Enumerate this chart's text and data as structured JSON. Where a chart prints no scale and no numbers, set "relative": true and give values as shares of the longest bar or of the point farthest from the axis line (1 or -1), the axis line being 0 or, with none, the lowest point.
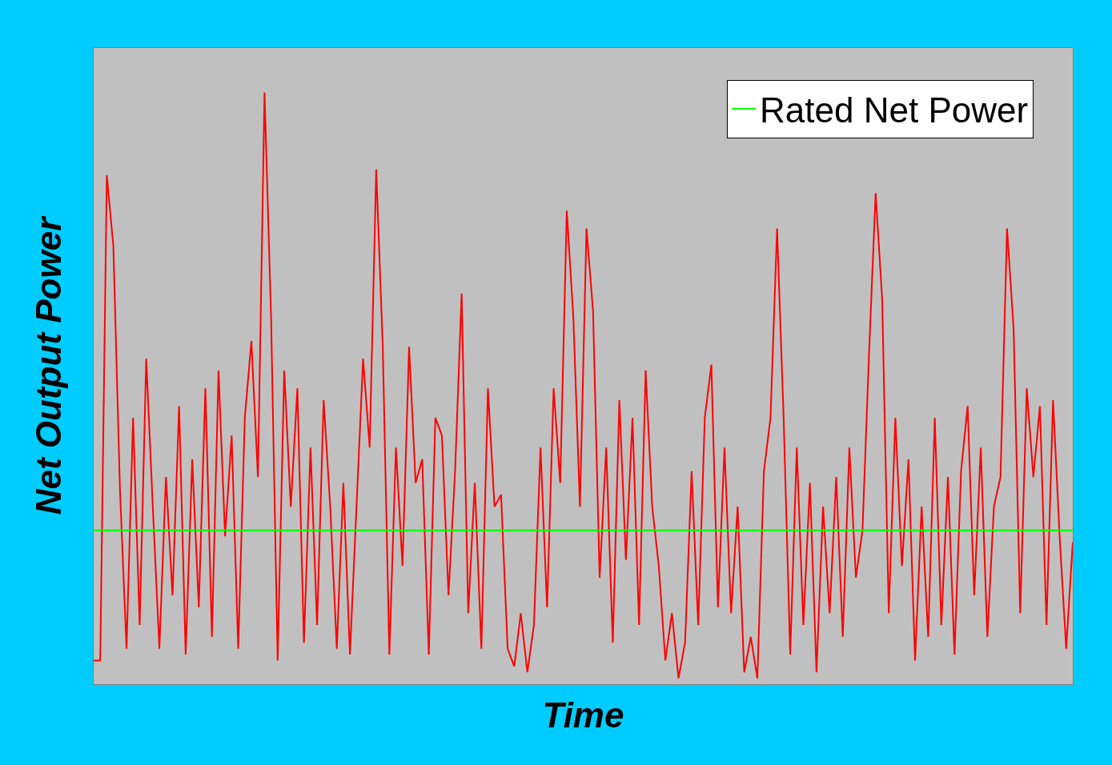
{
  "chart_data": {
    "type": "line",
    "relative": true,
    "xlabel": "Time",
    "ylabel": "Net Output Power",
    "legend": "top right",
    "grid": false,
    "marker": "none",
    "line_style": "solid",
    "categories": [
      null,
      null,
      null,
      null,
      null,
      null,
      null,
      null,
      null,
      null,
      null,
      null,
      null,
      null,
      null,
      null,
      null,
      null,
      null,
      null,
      null,
      null,
      null,
      null,
      null,
      null,
      null,
      null,
      null,
      null,
      null,
      null,
      null,
      null,
      null,
      null,
      null,
      null,
      null,
      null,
      null,
      null,
      null,
      null,
      null,
      null,
      null,
      null,
      null,
      null,
      null,
      null,
      null,
      null,
      null,
      null,
      null,
      null,
      null,
      null,
      null,
      null,
      null,
      null,
      null,
      null,
      null,
      null,
      null,
      null,
      null,
      null,
      null,
      null,
      null,
      null,
      null,
      null,
      null,
      null,
      null,
      null,
      null,
      null,
      null,
      null,
      null,
      null,
      null,
      null,
      null,
      null,
      null,
      null,
      null,
      null,
      null,
      null,
      null,
      null,
      null,
      null,
      null,
      null,
      null,
      null,
      null,
      null,
      null,
      null,
      null,
      null,
      null,
      null,
      null,
      null,
      null,
      null,
      null,
      null,
      null,
      null,
      null,
      null,
      null,
      null,
      null,
      null,
      null,
      null,
      null,
      null,
      null,
      null,
      null,
      null,
      null,
      null,
      null,
      null,
      null,
      null,
      null,
      null,
      null,
      null,
      null,
      null,
      null,
      null
    ],
    "series": [
      {
        "color": "#ff0000",
        "values": [
          0.04,
          0.04,
          0.86,
          0.74,
          0.33,
          0.06,
          0.45,
          0.1,
          0.55,
          0.3,
          0.06,
          0.35,
          0.15,
          0.47,
          0.05,
          0.38,
          0.13,
          0.5,
          0.08,
          0.53,
          0.25,
          0.42,
          0.06,
          0.45,
          0.58,
          0.35,
          1.0,
          0.62,
          0.04,
          0.53,
          0.3,
          0.5,
          0.07,
          0.4,
          0.1,
          0.48,
          0.3,
          0.06,
          0.34,
          0.05,
          0.3,
          0.55,
          0.4,
          0.87,
          0.57,
          0.05,
          0.4,
          0.2,
          0.57,
          0.34,
          0.38,
          0.05,
          0.45,
          0.42,
          0.15,
          0.36,
          0.66,
          0.12,
          0.34,
          0.06,
          0.5,
          0.3,
          0.32,
          0.06,
          0.03,
          0.12,
          0.02,
          0.1,
          0.4,
          0.13,
          0.5,
          0.34,
          0.8,
          0.62,
          0.3,
          0.77,
          0.63,
          0.18,
          0.4,
          0.07,
          0.48,
          0.21,
          0.45,
          0.1,
          0.53,
          0.3,
          0.2,
          0.04,
          0.12,
          0.01,
          0.07,
          0.36,
          0.1,
          0.45,
          0.54,
          0.13,
          0.4,
          0.12,
          0.3,
          0.02,
          0.08,
          0.01,
          0.36,
          0.45,
          0.77,
          0.45,
          0.05,
          0.4,
          0.1,
          0.34,
          0.02,
          0.3,
          0.12,
          0.35,
          0.08,
          0.4,
          0.18,
          0.26,
          0.56,
          0.83,
          0.65,
          0.12,
          0.45,
          0.2,
          0.38,
          0.04,
          0.3,
          0.08,
          0.45,
          0.1,
          0.35,
          0.05,
          0.36,
          0.47,
          0.15,
          0.4,
          0.08,
          0.3,
          0.35,
          0.77,
          0.6,
          0.12,
          0.5,
          0.35,
          0.47,
          0.1,
          0.48,
          0.25,
          0.06,
          0.24
        ]
      },
      {
        "name": "Rated Net Power",
        "color": "#00ff00",
        "values": [
          0.26,
          0.26,
          0.26,
          0.26,
          0.26,
          0.26,
          0.26,
          0.26,
          0.26,
          0.26,
          0.26,
          0.26,
          0.26,
          0.26,
          0.26,
          0.26,
          0.26,
          0.26,
          0.26,
          0.26,
          0.26,
          0.26,
          0.26,
          0.26,
          0.26,
          0.26,
          0.26,
          0.26,
          0.26,
          0.26,
          0.26,
          0.26,
          0.26,
          0.26,
          0.26,
          0.26,
          0.26,
          0.26,
          0.26,
          0.26,
          0.26,
          0.26,
          0.26,
          0.26,
          0.26,
          0.26,
          0.26,
          0.26,
          0.26,
          0.26,
          0.26,
          0.26,
          0.26,
          0.26,
          0.26,
          0.26,
          0.26,
          0.26,
          0.26,
          0.26,
          0.26,
          0.26,
          0.26,
          0.26,
          0.26,
          0.26,
          0.26,
          0.26,
          0.26,
          0.26,
          0.26,
          0.26,
          0.26,
          0.26,
          0.26,
          0.26,
          0.26,
          0.26,
          0.26,
          0.26,
          0.26,
          0.26,
          0.26,
          0.26,
          0.26,
          0.26,
          0.26,
          0.26,
          0.26,
          0.26,
          0.26,
          0.26,
          0.26,
          0.26,
          0.26,
          0.26,
          0.26,
          0.26,
          0.26,
          0.26,
          0.26,
          0.26,
          0.26,
          0.26,
          0.26,
          0.26,
          0.26,
          0.26,
          0.26,
          0.26,
          0.26,
          0.26,
          0.26,
          0.26,
          0.26,
          0.26,
          0.26,
          0.26,
          0.26,
          0.26,
          0.26,
          0.26,
          0.26,
          0.26,
          0.26,
          0.26,
          0.26,
          0.26,
          0.26,
          0.26,
          0.26,
          0.26,
          0.26,
          0.26,
          0.26,
          0.26,
          0.26,
          0.26,
          0.26,
          0.26,
          0.26,
          0.26,
          0.26,
          0.26,
          0.26,
          0.26,
          0.26,
          0.26,
          0.26,
          0.26
        ]
      }
    ]
  }
}
